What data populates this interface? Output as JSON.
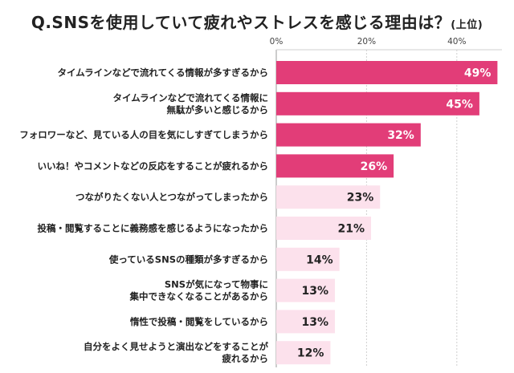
{
  "chart_data": {
    "type": "bar",
    "orientation": "horizontal",
    "title": "Q.SNSを使用していて疲れやストレスを感じる理由は？",
    "title_suffix": "(上位)",
    "xlabel": "",
    "ylabel": "",
    "xlim": [
      0,
      50
    ],
    "ticks": [
      0,
      20,
      40
    ],
    "tick_labels": [
      "0%",
      "20%",
      "40%"
    ],
    "grid": true,
    "categories": [
      [
        "タイムラインなどで流れてくる情報が多すぎるから"
      ],
      [
        "タイムラインなどで流れてくる情報に",
        "無駄が多いと感じるから"
      ],
      [
        "フォロワーなど、見ている人の目を気にしすぎてしまうから"
      ],
      [
        "いいね！やコメントなどの反応をすることが疲れるから"
      ],
      [
        "つながりたくない人とつながってしまったから"
      ],
      [
        "投稿・閲覧することに義務感を感じるようになったから"
      ],
      [
        "使っているSNSの種類が多すぎるから"
      ],
      [
        "SNSが気になって物事に",
        "集中できなくなることがあるから"
      ],
      [
        "惰性で投稿・閲覧をしているから"
      ],
      [
        "自分をよく見せようと演出などをすることが",
        "疲れるから"
      ]
    ],
    "values": [
      49,
      45,
      32,
      26,
      23,
      21,
      14,
      13,
      13,
      12
    ],
    "value_labels": [
      "49%",
      "45%",
      "32%",
      "26%",
      "23%",
      "21%",
      "14%",
      "13%",
      "13%",
      "12%"
    ],
    "highlight_count": 4,
    "colors": {
      "highlight": "#e23d78",
      "normal": "#fce1ec",
      "highlight_text": "#ffffff",
      "normal_text": "#222222",
      "grid": "#cfcfcf",
      "axis": "#999999"
    }
  }
}
